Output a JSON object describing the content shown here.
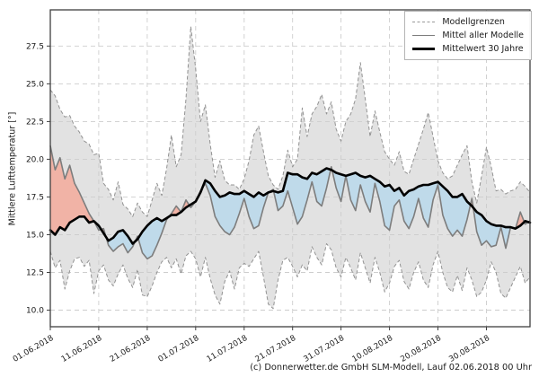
{
  "figure": {
    "y_axis_label": "Mittlere Lufttemperatur [°]",
    "footer_credit": "(c) Donnerwetter.de GmbH SLM-Modell, Lauf 02.06.2018 00 Uhr"
  },
  "legend": {
    "items": [
      {
        "label": "Modellgrenzen",
        "style": "dashed-gray"
      },
      {
        "label": "Mittel aller Modelle",
        "style": "solid-gray"
      },
      {
        "label": "Mittelwert 30 Jahre",
        "style": "solid-black-thick"
      }
    ]
  },
  "colors": {
    "band_fill": "#e2e2e2",
    "bound_line": "#929292",
    "model_mean_line": "#7d7d7d",
    "climate_mean_line": "#000000",
    "warm_fill": "#f1b3a6",
    "cool_fill": "#bfdaea",
    "grid": "#cdcdcd",
    "spine": "#3f3f3f"
  },
  "chart_data": {
    "type": "line",
    "title": "",
    "xlabel": "",
    "ylabel": "Mittlere Lufttemperatur [°]",
    "ylim": [
      8.9,
      29.9
    ],
    "grid": true,
    "legend_position": "upper right",
    "x_unit": "daily values starting 01.06.2018",
    "x_step_days": 1,
    "x_tick_days": [
      0,
      10,
      20,
      30,
      40,
      50,
      60,
      70,
      80,
      90
    ],
    "x_tick_labels": [
      "01.06.2018",
      "11.06.2018",
      "21.06.2018",
      "01.07.2018",
      "11.07.2018",
      "21.07.2018",
      "31.07.2018",
      "10.08.2018",
      "20.08.2018",
      "30.08.2018"
    ],
    "y_ticks": [
      10.0,
      12.5,
      15.0,
      17.5,
      20.0,
      22.5,
      25.0,
      27.5
    ],
    "series": [
      {
        "name": "Modellgrenzen (obere Grenze)",
        "role": "upper_bound",
        "values": [
          24.6,
          24.2,
          23.3,
          22.8,
          22.9,
          22.2,
          21.8,
          21.2,
          21.0,
          20.3,
          20.4,
          18.4,
          18.0,
          17.3,
          18.5,
          17.0,
          16.7,
          16.2,
          17.1,
          16.5,
          16.2,
          17.3,
          18.4,
          17.6,
          19.4,
          21.6,
          19.5,
          20.3,
          24.0,
          28.8,
          26.0,
          22.5,
          23.6,
          21.0,
          18.8,
          19.9,
          18.6,
          18.3,
          18.3,
          18.0,
          18.7,
          19.9,
          21.6,
          22.2,
          20.5,
          18.9,
          18.3,
          18.0,
          18.9,
          20.6,
          19.5,
          20.0,
          23.4,
          21.5,
          23.0,
          23.5,
          24.3,
          23.0,
          23.8,
          22.0,
          21.2,
          22.5,
          23.0,
          24.0,
          26.4,
          24.0,
          21.5,
          23.2,
          21.8,
          20.5,
          20.0,
          19.6,
          20.5,
          19.2,
          19.0,
          20.0,
          21.0,
          22.0,
          23.1,
          21.5,
          19.9,
          19.1,
          18.7,
          18.9,
          19.6,
          20.3,
          20.9,
          18.5,
          17.1,
          18.9,
          20.8,
          19.5,
          17.9,
          18.0,
          17.7,
          17.9,
          18.0,
          18.5,
          18.2,
          17.8
        ]
      },
      {
        "name": "Modellgrenzen (untere Grenze)",
        "role": "lower_bound",
        "values": [
          13.9,
          12.8,
          13.3,
          11.4,
          12.6,
          13.4,
          13.5,
          12.9,
          13.3,
          11.1,
          12.6,
          13.0,
          12.0,
          11.6,
          12.4,
          13.0,
          12.1,
          11.5,
          12.7,
          11.0,
          10.9,
          11.6,
          12.5,
          13.2,
          13.5,
          12.8,
          13.4,
          12.4,
          13.6,
          13.9,
          13.4,
          12.2,
          13.5,
          12.1,
          11.0,
          10.4,
          11.9,
          12.6,
          11.4,
          12.8,
          13.1,
          12.9,
          13.4,
          13.9,
          12.2,
          10.4,
          10.1,
          12.0,
          13.3,
          13.5,
          12.9,
          12.2,
          13.0,
          12.6,
          14.2,
          13.5,
          13.0,
          14.4,
          14.0,
          12.8,
          12.2,
          13.5,
          12.8,
          12.0,
          13.8,
          12.8,
          11.8,
          13.5,
          12.5,
          11.2,
          11.8,
          12.9,
          13.3,
          11.9,
          11.4,
          12.5,
          13.2,
          12.0,
          11.5,
          13.0,
          13.9,
          12.5,
          11.5,
          11.2,
          12.3,
          11.3,
          12.8,
          12.0,
          10.9,
          11.2,
          12.0,
          13.2,
          12.5,
          11.1,
          10.8,
          11.5,
          12.2,
          12.9,
          11.8,
          12.2
        ]
      },
      {
        "name": "Mittel aller Modelle",
        "role": "model_mean",
        "values": [
          20.9,
          19.3,
          20.1,
          18.7,
          19.6,
          18.4,
          17.8,
          17.1,
          16.4,
          15.9,
          15.3,
          15.4,
          14.3,
          13.9,
          14.2,
          14.4,
          13.8,
          14.2,
          14.9,
          13.8,
          13.4,
          13.6,
          14.3,
          15.1,
          16.0,
          16.4,
          16.9,
          16.5,
          17.3,
          16.8,
          17.2,
          17.9,
          18.4,
          17.6,
          16.2,
          15.6,
          15.2,
          15.0,
          15.5,
          16.4,
          17.4,
          16.2,
          15.4,
          15.6,
          16.8,
          17.8,
          18.0,
          16.6,
          16.9,
          17.9,
          16.8,
          15.7,
          16.2,
          17.3,
          18.5,
          17.2,
          16.9,
          18.1,
          19.5,
          18.1,
          17.2,
          18.9,
          17.3,
          16.6,
          18.3,
          17.2,
          16.5,
          18.4,
          17.2,
          15.6,
          15.3,
          16.9,
          17.3,
          15.9,
          15.4,
          16.2,
          17.4,
          16.1,
          15.5,
          17.3,
          18.3,
          16.3,
          15.4,
          14.9,
          15.3,
          14.9,
          16.0,
          17.4,
          15.2,
          14.3,
          14.6,
          14.2,
          14.3,
          15.5,
          14.1,
          15.5,
          15.4,
          16.5,
          15.7,
          15.9
        ]
      },
      {
        "name": "Mittelwert 30 Jahre",
        "role": "climate_mean",
        "values": [
          15.3,
          15.0,
          15.5,
          15.3,
          15.8,
          16.0,
          16.2,
          16.2,
          15.8,
          15.9,
          15.6,
          15.1,
          14.6,
          14.8,
          15.2,
          15.3,
          14.9,
          14.4,
          14.7,
          15.2,
          15.6,
          15.9,
          16.1,
          15.9,
          16.1,
          16.3,
          16.3,
          16.5,
          16.8,
          17.0,
          17.2,
          17.8,
          18.6,
          18.4,
          17.9,
          17.5,
          17.6,
          17.8,
          17.7,
          17.7,
          17.9,
          17.7,
          17.5,
          17.8,
          17.6,
          17.8,
          17.9,
          17.8,
          17.9,
          19.1,
          19.0,
          19.0,
          18.8,
          18.7,
          19.1,
          19.0,
          19.2,
          19.4,
          19.3,
          19.1,
          19.0,
          18.9,
          19.0,
          19.1,
          18.9,
          18.8,
          18.9,
          18.7,
          18.5,
          18.2,
          18.3,
          17.9,
          18.1,
          17.6,
          17.9,
          18.0,
          18.2,
          18.3,
          18.3,
          18.4,
          18.5,
          18.2,
          17.9,
          17.5,
          17.5,
          17.7,
          17.2,
          16.9,
          16.5,
          16.3,
          15.9,
          15.7,
          15.6,
          15.6,
          15.5,
          15.5,
          15.4,
          15.6,
          15.9,
          15.8
        ]
      }
    ],
    "fills": {
      "band": "gray band between model bounds (Modellgrenzen)",
      "above_normal": "red where model mean is above the 30-year mean",
      "below_normal": "blue where model mean is below the 30-year mean"
    }
  }
}
